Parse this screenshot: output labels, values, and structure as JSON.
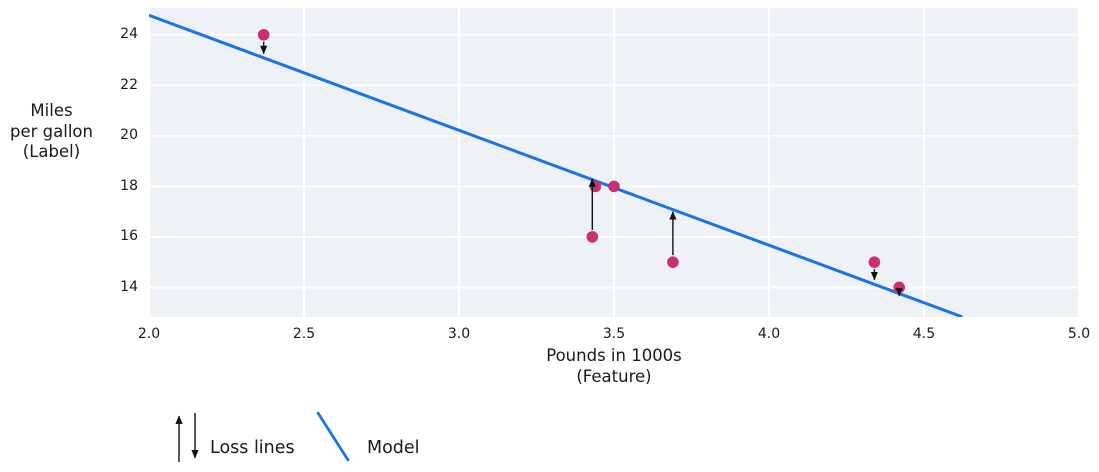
{
  "legend": {
    "loss_label": "Loss lines",
    "model_label": "Model"
  },
  "chart_data": {
    "type": "scatter",
    "title": "",
    "xlabel": "Pounds in 1000s\n(Feature)",
    "ylabel": "Miles\nper gallon\n(Label)",
    "xlim": [
      2.0,
      5.0
    ],
    "ylim": [
      12.83,
      25.06
    ],
    "x_ticks": [
      2.0,
      2.5,
      3.0,
      3.5,
      4.0,
      4.5,
      5.0
    ],
    "x_tick_labels": [
      "2.0",
      "2.5",
      "3.0",
      "3.5",
      "4.0",
      "4.5",
      "5.0"
    ],
    "y_ticks": [
      14,
      16,
      18,
      20,
      22,
      24
    ],
    "y_tick_labels": [
      "14",
      "16",
      "18",
      "20",
      "22",
      "24"
    ],
    "grid": true,
    "legend_position": "bottom-left",
    "plot_bg_color": "#eef1f6",
    "grid_color": "#ffffff",
    "text_color": "#1a1a1a",
    "points": [
      {
        "x": 2.37,
        "y": 24
      },
      {
        "x": 3.44,
        "y": 18
      },
      {
        "x": 3.5,
        "y": 18
      },
      {
        "x": 3.43,
        "y": 16
      },
      {
        "x": 3.69,
        "y": 15
      },
      {
        "x": 4.34,
        "y": 15
      },
      {
        "x": 4.42,
        "y": 14
      }
    ],
    "point_color": "#cb2e71",
    "model_line": {
      "x1": 2.0,
      "y1": 24.77,
      "x2": 4.62,
      "y2": 12.85,
      "color": "#1a73e8",
      "width": 3
    },
    "loss_arrows": [
      {
        "x": 2.37,
        "y_from": 24,
        "y_to": 23.25,
        "direction": "down"
      },
      {
        "x": 3.43,
        "y_from": 16,
        "y_to": 18.3,
        "direction": "up"
      },
      {
        "x": 3.69,
        "y_from": 15,
        "y_to": 17.0,
        "direction": "up"
      },
      {
        "x": 4.34,
        "y_from": 15,
        "y_to": 14.3,
        "direction": "down"
      },
      {
        "x": 4.42,
        "y_from": 14,
        "y_to": 13.67,
        "direction": "down"
      }
    ],
    "arrow_color": "#111111"
  }
}
